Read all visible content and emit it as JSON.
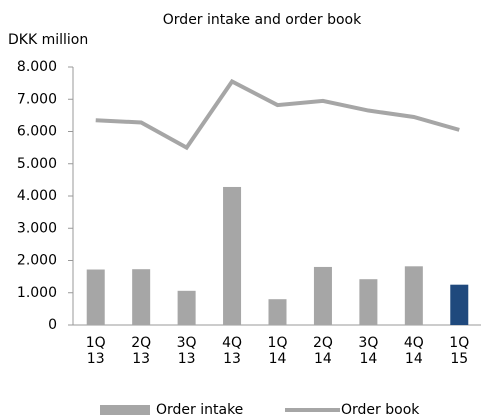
{
  "chart_data": {
    "type": "bar",
    "title": "Order intake and order book",
    "y_label": "DKK million",
    "categories": [
      "1Q 13",
      "2Q 13",
      "3Q 13",
      "4Q 13",
      "1Q 14",
      "2Q 14",
      "3Q 14",
      "4Q 14",
      "1Q 15"
    ],
    "series": [
      {
        "name": "Order intake",
        "type": "bar",
        "color": "#a6a6a6",
        "colors": [
          "#a6a6a6",
          "#a6a6a6",
          "#a6a6a6",
          "#a6a6a6",
          "#a6a6a6",
          "#a6a6a6",
          "#a6a6a6",
          "#a6a6a6",
          "#1f497d"
        ],
        "values": [
          1720,
          1730,
          1060,
          4280,
          800,
          1800,
          1420,
          1820,
          1250
        ]
      },
      {
        "name": "Order book",
        "type": "line",
        "color": "#a6a6a6",
        "values": [
          6350,
          6280,
          5500,
          7550,
          6820,
          6950,
          6650,
          6450,
          6050
        ]
      }
    ],
    "ylim": [
      0,
      8000
    ],
    "yticks": [
      0,
      {
        "value": 1000,
        "label": "1.000"
      },
      {
        "value": 2000,
        "label": "2.000"
      },
      {
        "value": 3000,
        "label": "3.000"
      },
      {
        "value": 4000,
        "label": "4.000"
      },
      {
        "value": 5000,
        "label": "5.000"
      },
      {
        "value": 6000,
        "label": "6.000"
      },
      {
        "value": 7000,
        "label": "7.000"
      },
      {
        "value": 8000,
        "label": "8.000"
      }
    ],
    "grid": false,
    "legend": "bottom"
  }
}
